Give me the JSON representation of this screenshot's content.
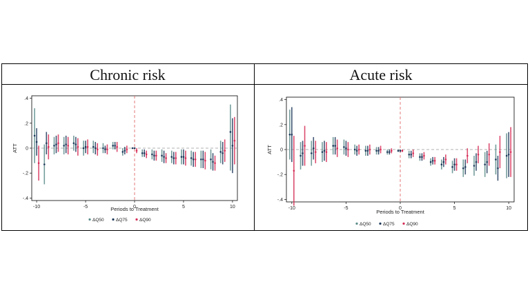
{
  "colors": {
    "q50": "#5b8c8a",
    "q75": "#1f3a5c",
    "q90": "#d62d56",
    "ref": "#e26b6b",
    "zero": "#999999"
  },
  "panels": [
    {
      "title": "Chronic risk"
    },
    {
      "title": "Acute risk"
    }
  ],
  "chart_data": [
    {
      "type": "scatter",
      "title": "Chronic risk",
      "xlabel": "Periods to Treatment",
      "ylabel": "ATT",
      "xlim": [
        -10.5,
        10.5
      ],
      "ylim": [
        -0.42,
        0.42
      ],
      "xticks": [
        -10,
        -5,
        0,
        5,
        10
      ],
      "yticks": [
        0.4,
        0.2,
        0,
        -0.2,
        -0.4
      ],
      "ytick_labels": [
        ".4",
        ".2",
        "0",
        "-.2",
        "-.4"
      ],
      "vline_x": 0,
      "series": [
        {
          "name": "ΔQ50",
          "color_key": "q50",
          "x": [
            -10,
            -9,
            -8,
            -7,
            -6,
            -5,
            -4,
            -3,
            -2,
            -1,
            0,
            1,
            2,
            3,
            4,
            5,
            6,
            7,
            8,
            9,
            10
          ],
          "y": [
            0.1,
            -0.13,
            0.02,
            0.02,
            0.04,
            0.0,
            0.01,
            0.0,
            0.02,
            -0.03,
            0.0,
            -0.04,
            -0.05,
            -0.06,
            -0.07,
            -0.07,
            -0.08,
            -0.09,
            -0.09,
            -0.03,
            0.13
          ],
          "lo": [
            -0.12,
            -0.29,
            -0.05,
            -0.05,
            -0.02,
            -0.06,
            -0.04,
            -0.04,
            -0.01,
            -0.06,
            0.0,
            -0.07,
            -0.09,
            -0.11,
            -0.12,
            -0.13,
            -0.14,
            -0.16,
            -0.17,
            -0.12,
            -0.18
          ],
          "hi": [
            0.32,
            0.03,
            0.09,
            0.09,
            0.1,
            0.06,
            0.06,
            0.04,
            0.05,
            0.0,
            0.0,
            -0.01,
            -0.01,
            -0.01,
            -0.02,
            -0.01,
            -0.02,
            -0.02,
            -0.01,
            0.06,
            0.35
          ]
        },
        {
          "name": "ΔQ75",
          "color_key": "q75",
          "x": [
            -10,
            -9,
            -8,
            -7,
            -6,
            -5,
            -4,
            -3,
            -2,
            -1,
            0,
            1,
            2,
            3,
            4,
            5,
            6,
            7,
            8,
            9,
            10
          ],
          "y": [
            0.05,
            0.04,
            0.03,
            0.03,
            0.03,
            0.01,
            0.0,
            -0.01,
            0.02,
            -0.02,
            0.0,
            -0.04,
            -0.06,
            -0.07,
            -0.08,
            -0.07,
            -0.09,
            -0.09,
            -0.11,
            -0.04,
            0.02
          ],
          "lo": [
            -0.06,
            -0.05,
            -0.04,
            -0.04,
            -0.03,
            -0.04,
            -0.05,
            -0.04,
            -0.01,
            -0.05,
            0.0,
            -0.07,
            -0.1,
            -0.12,
            -0.13,
            -0.13,
            -0.15,
            -0.16,
            -0.18,
            -0.13,
            -0.2
          ],
          "hi": [
            0.16,
            0.13,
            0.1,
            0.1,
            0.09,
            0.06,
            0.05,
            0.02,
            0.05,
            0.01,
            0.0,
            -0.01,
            -0.02,
            -0.02,
            -0.03,
            -0.01,
            -0.03,
            -0.02,
            -0.04,
            0.05,
            0.24
          ]
        },
        {
          "name": "ΔQ90",
          "color_key": "q90",
          "x": [
            -10,
            -9,
            -8,
            -7,
            -6,
            -5,
            -4,
            -3,
            -2,
            -1,
            0,
            1,
            2,
            3,
            4,
            5,
            6,
            7,
            8,
            9,
            10
          ],
          "y": [
            -0.12,
            0.01,
            0.04,
            0.02,
            0.01,
            0.01,
            -0.01,
            -0.01,
            0.01,
            -0.01,
            -0.02,
            -0.05,
            -0.06,
            -0.08,
            -0.08,
            -0.08,
            -0.09,
            -0.1,
            -0.12,
            -0.02,
            0.06
          ],
          "lo": [
            -0.26,
            -0.09,
            -0.03,
            -0.05,
            -0.06,
            -0.05,
            -0.06,
            -0.05,
            -0.03,
            -0.04,
            -0.04,
            -0.08,
            -0.1,
            -0.12,
            -0.13,
            -0.14,
            -0.15,
            -0.17,
            -0.18,
            -0.11,
            -0.13
          ],
          "hi": [
            0.02,
            0.11,
            0.11,
            0.09,
            0.08,
            0.07,
            0.04,
            0.03,
            0.05,
            0.02,
            0.0,
            -0.02,
            -0.02,
            -0.04,
            -0.03,
            -0.02,
            -0.03,
            -0.03,
            -0.06,
            0.07,
            0.25
          ]
        }
      ]
    },
    {
      "type": "scatter",
      "title": "Acute risk",
      "xlabel": "Periods to Treatment",
      "ylabel": "ATT",
      "xlim": [
        -10.5,
        10.5
      ],
      "ylim": [
        -0.42,
        0.42
      ],
      "xticks": [
        -10,
        -5,
        0,
        5,
        10
      ],
      "yticks": [
        0.4,
        0.2,
        0,
        -0.2,
        -0.4
      ],
      "ytick_labels": [
        ".4",
        ".2",
        "0",
        "-.2",
        "-.4"
      ],
      "vline_x": 0,
      "series": [
        {
          "name": "ΔQ50",
          "color_key": "q50",
          "x": [
            -10,
            -9,
            -8,
            -7,
            -6,
            -5,
            -4,
            -3,
            -2,
            -1,
            0,
            1,
            2,
            3,
            4,
            5,
            6,
            7,
            8,
            9,
            10
          ],
          "y": [
            0.12,
            -0.05,
            -0.03,
            -0.02,
            0.03,
            0.02,
            0.0,
            -0.01,
            -0.01,
            -0.02,
            -0.01,
            -0.04,
            -0.06,
            -0.1,
            -0.12,
            -0.14,
            -0.15,
            -0.13,
            -0.12,
            -0.08,
            -0.05
          ],
          "lo": [
            -0.08,
            -0.16,
            -0.13,
            -0.1,
            -0.04,
            -0.04,
            -0.04,
            -0.05,
            -0.04,
            -0.04,
            -0.02,
            -0.07,
            -0.09,
            -0.13,
            -0.16,
            -0.19,
            -0.22,
            -0.21,
            -0.22,
            -0.2,
            -0.23
          ],
          "hi": [
            0.32,
            0.06,
            0.07,
            0.06,
            0.1,
            0.08,
            0.04,
            0.03,
            0.02,
            0.0,
            0.0,
            -0.01,
            -0.03,
            -0.07,
            -0.08,
            -0.09,
            -0.08,
            -0.05,
            -0.02,
            0.04,
            0.13
          ]
        },
        {
          "name": "ΔQ75",
          "color_key": "q75",
          "x": [
            -10,
            -9,
            -8,
            -7,
            -6,
            -5,
            -4,
            -3,
            -2,
            -1,
            0,
            1,
            2,
            3,
            4,
            5,
            6,
            7,
            8,
            9,
            10
          ],
          "y": [
            0.12,
            -0.03,
            0.01,
            -0.01,
            0.03,
            0.01,
            -0.01,
            -0.01,
            -0.01,
            -0.02,
            -0.01,
            -0.04,
            -0.06,
            -0.09,
            -0.1,
            -0.12,
            -0.14,
            -0.1,
            -0.1,
            -0.15,
            -0.04
          ],
          "lo": [
            -0.1,
            -0.13,
            -0.08,
            -0.09,
            -0.04,
            -0.05,
            -0.05,
            -0.05,
            -0.04,
            -0.04,
            -0.02,
            -0.07,
            -0.09,
            -0.12,
            -0.14,
            -0.17,
            -0.2,
            -0.17,
            -0.19,
            -0.25,
            -0.22
          ],
          "hi": [
            0.34,
            0.07,
            0.1,
            0.07,
            0.1,
            0.07,
            0.03,
            0.03,
            0.02,
            0.0,
            0.0,
            -0.01,
            -0.03,
            -0.06,
            -0.06,
            -0.07,
            -0.08,
            -0.03,
            -0.01,
            -0.05,
            0.14
          ]
        },
        {
          "name": "ΔQ90",
          "color_key": "q90",
          "x": [
            -10,
            -9,
            -8,
            -7,
            -6,
            -5,
            -4,
            -3,
            -2,
            -1,
            0,
            1,
            2,
            3,
            4,
            5,
            6,
            7,
            8,
            9,
            10
          ],
          "y": [
            -0.17,
            0.03,
            -0.02,
            -0.02,
            0.01,
            0.0,
            0.0,
            0.0,
            0.0,
            -0.01,
            -0.01,
            -0.03,
            -0.05,
            -0.09,
            -0.08,
            -0.12,
            -0.05,
            -0.04,
            -0.04,
            -0.02,
            -0.02
          ],
          "lo": [
            -0.45,
            -0.13,
            -0.11,
            -0.1,
            -0.06,
            -0.06,
            -0.04,
            -0.04,
            -0.03,
            -0.03,
            -0.02,
            -0.06,
            -0.08,
            -0.12,
            -0.12,
            -0.17,
            -0.11,
            -0.11,
            -0.13,
            -0.15,
            -0.22
          ],
          "hi": [
            0.11,
            0.19,
            0.07,
            0.06,
            0.08,
            0.06,
            0.04,
            0.04,
            0.03,
            0.01,
            0.0,
            0.0,
            -0.02,
            -0.06,
            -0.04,
            -0.07,
            0.01,
            0.03,
            0.05,
            0.11,
            0.18
          ]
        }
      ]
    }
  ]
}
